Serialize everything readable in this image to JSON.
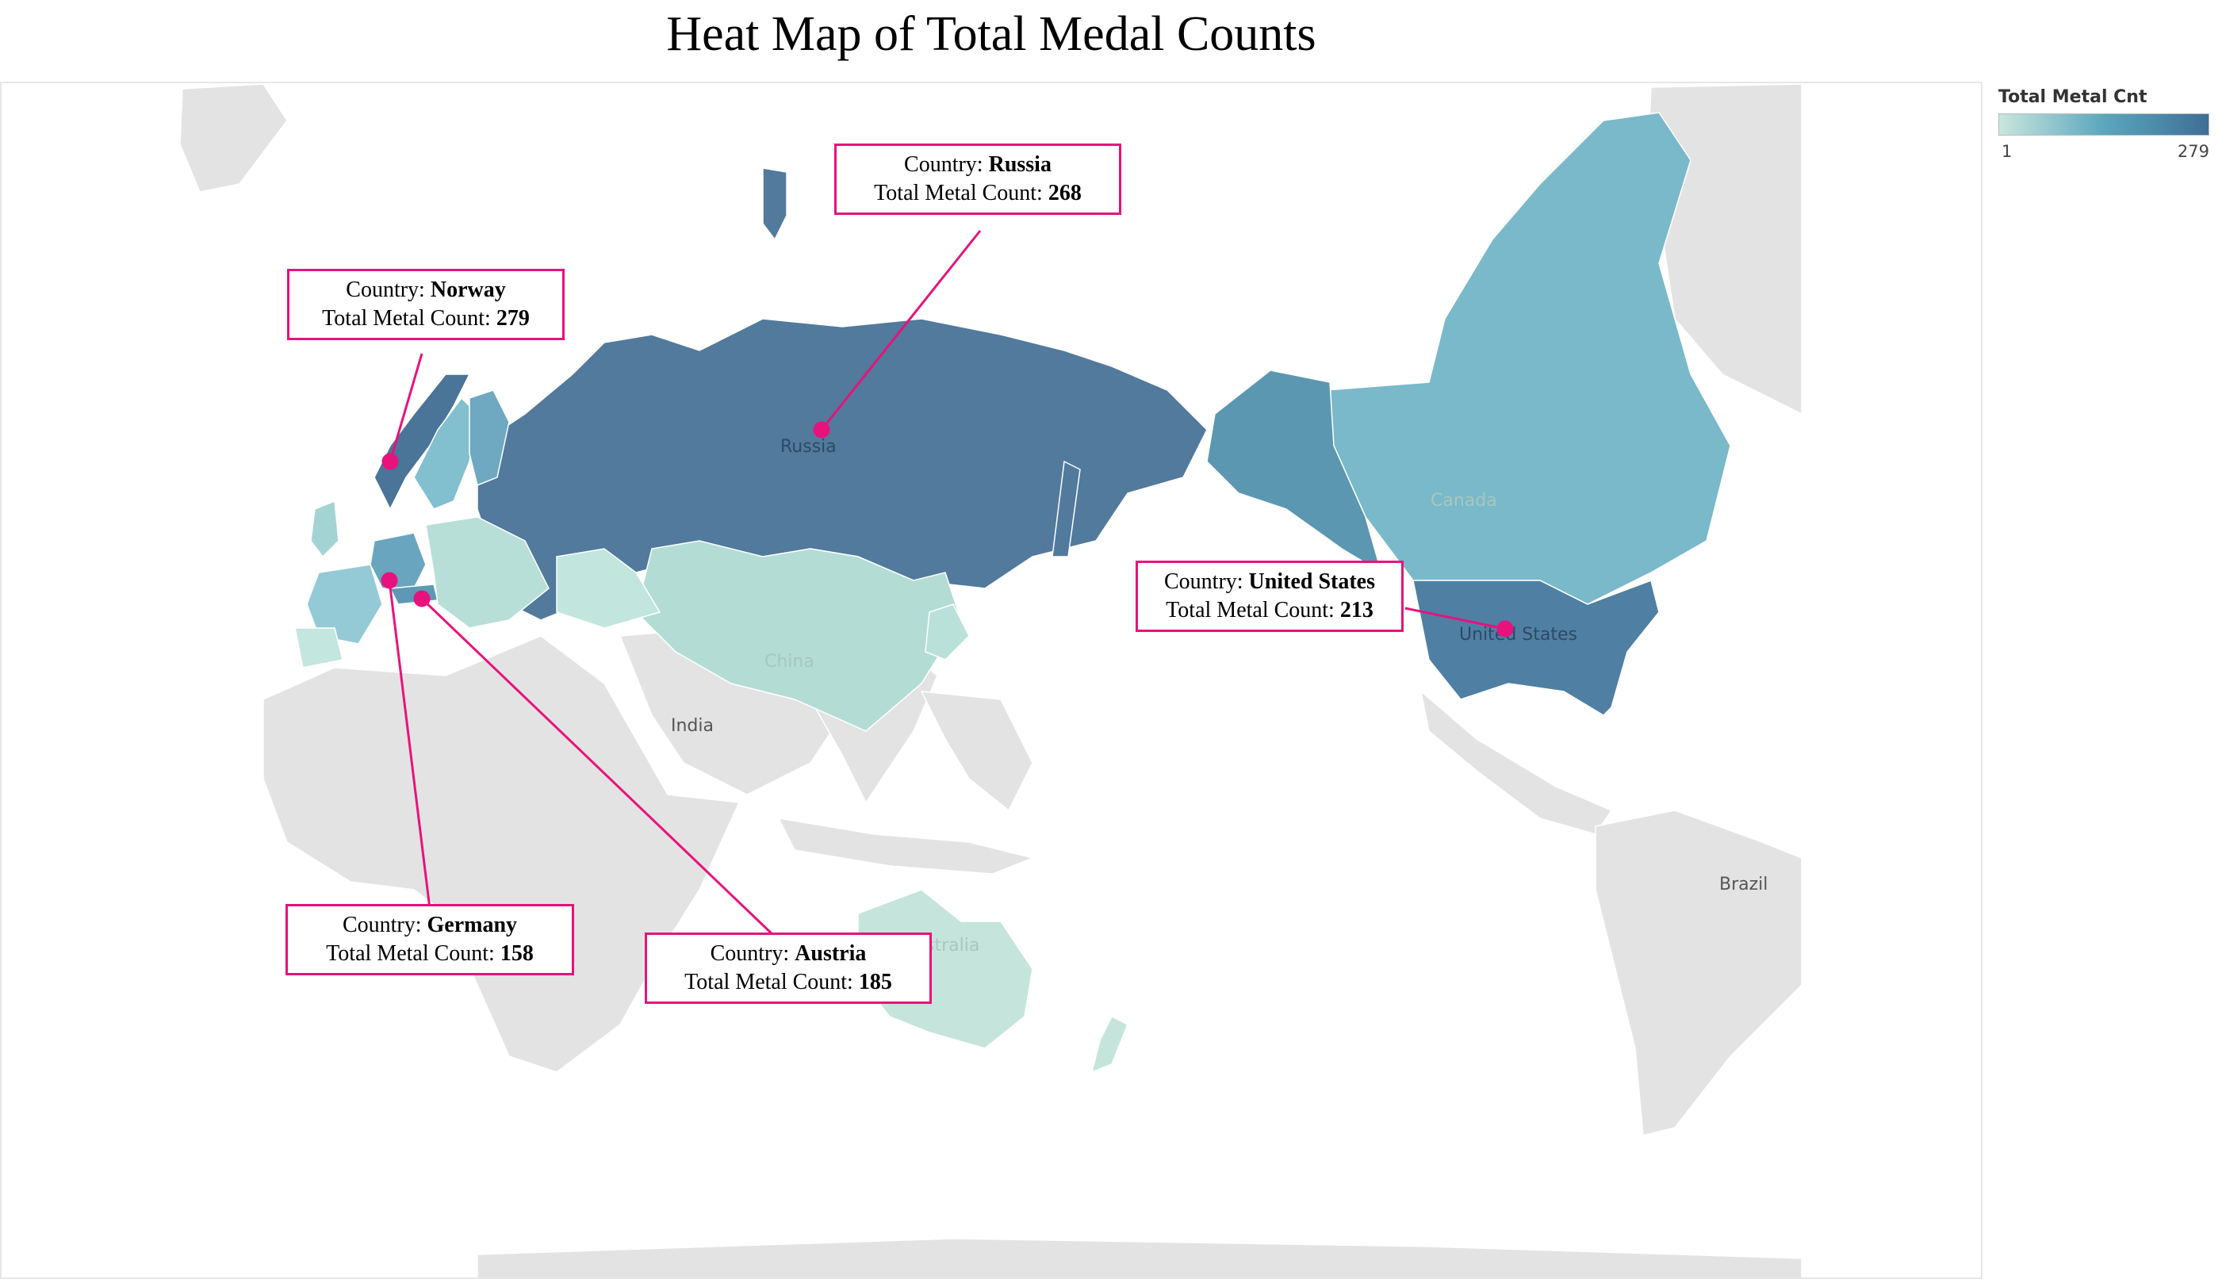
{
  "title": "Heat Map of Total Medal Counts",
  "legend": {
    "title": "Total Metal Cnt",
    "min": "1",
    "max": "279",
    "color_low": "#c9e6de",
    "color_high": "#3f6e96"
  },
  "map_labels": {
    "russia": "Russia",
    "canada": "Canada",
    "united_states": "United States",
    "china": "China",
    "india": "India",
    "australia": "Australia",
    "brazil": "Brazil"
  },
  "callouts": {
    "norway": {
      "country_label": "Country:",
      "country": "Norway",
      "count_label": "Total Metal Count:",
      "count": "279"
    },
    "russia": {
      "country_label": "Country:",
      "country": "Russia",
      "count_label": "Total Metal Count:",
      "count": "268"
    },
    "usa": {
      "country_label": "Country:",
      "country": "United States",
      "count_label": "Total Metal Count:",
      "count": "213"
    },
    "germany": {
      "country_label": "Country:",
      "country": "Germany",
      "count_label": "Total Metal Count:",
      "count": "158"
    },
    "austria": {
      "country_label": "Country:",
      "country": "Austria",
      "count_label": "Total Metal Count:",
      "count": "185"
    }
  },
  "colors": {
    "accent": "#e8127c",
    "land_no_data": "#e3e3e3",
    "russia": "#517a9c",
    "norway": "#4a7498",
    "usa": "#4f7fa3",
    "canada": "#79b9c9",
    "alaska": "#5c97b1",
    "china": "#b3dcd5",
    "europe_light": "#b7dfd8",
    "europe_mid": "#82bfcf",
    "australia": "#c5e5dc"
  }
}
